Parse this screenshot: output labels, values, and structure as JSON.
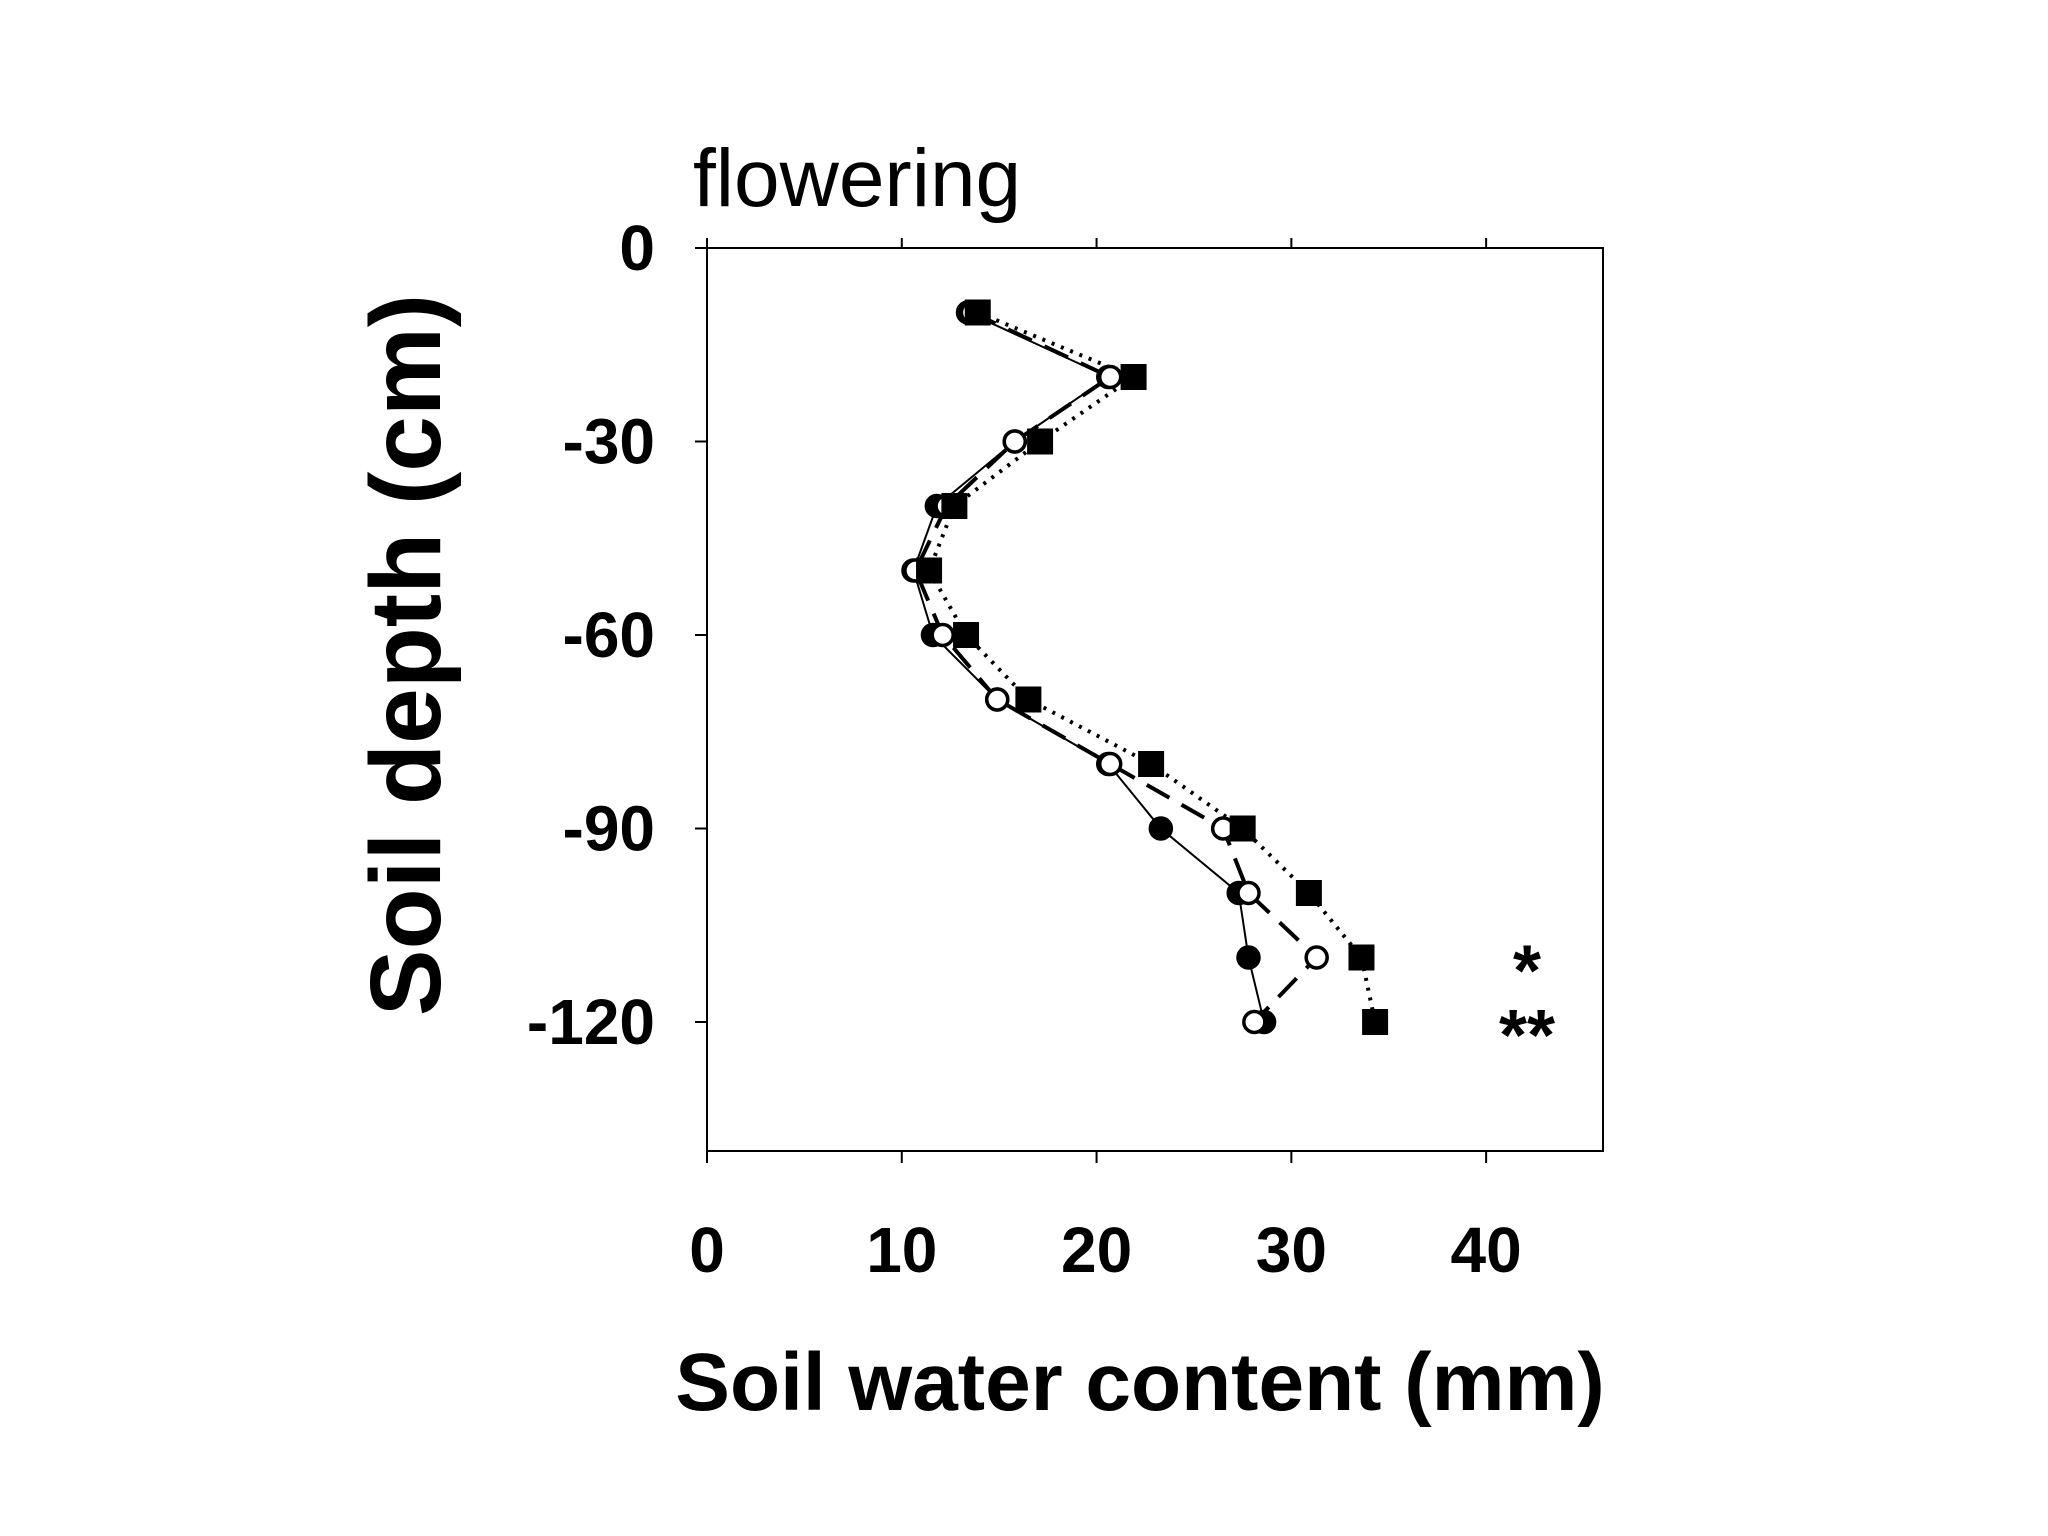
{
  "chart_data": {
    "type": "scatter",
    "title": "flowering",
    "xlabel": "Soil water content (mm)",
    "ylabel": "Soil depth (cm)",
    "xlim": [
      0,
      46
    ],
    "xticks": [
      0,
      10,
      20,
      30,
      40
    ],
    "ylim": [
      -140,
      0
    ],
    "yticks": [
      0,
      -30,
      -60,
      -90,
      -120
    ],
    "y": [
      -10,
      -20,
      -30,
      -40,
      -50,
      -60,
      -70,
      -80,
      -90,
      -100,
      -110,
      -120
    ],
    "series": [
      {
        "color": "#000000",
        "marker": "filled-circle",
        "line": "solid",
        "x": [
          13.4,
          20.6,
          15.8,
          11.8,
          10.6,
          11.6,
          14.9,
          20.6,
          23.3,
          27.3,
          27.8,
          28.6
        ]
      },
      {
        "color": "#000000",
        "marker": "open-circle",
        "line": "dashed",
        "x": [
          13.6,
          20.7,
          15.8,
          12.3,
          10.7,
          12.1,
          14.9,
          20.7,
          26.5,
          27.8,
          31.3,
          28.1
        ]
      },
      {
        "color": "#000000",
        "marker": "filled-square",
        "line": "dotted",
        "x": [
          13.9,
          21.9,
          17.1,
          12.7,
          11.4,
          13.3,
          16.5,
          22.8,
          27.5,
          30.9,
          33.6,
          34.3
        ]
      }
    ],
    "annotations": [
      "*",
      "**"
    ]
  }
}
